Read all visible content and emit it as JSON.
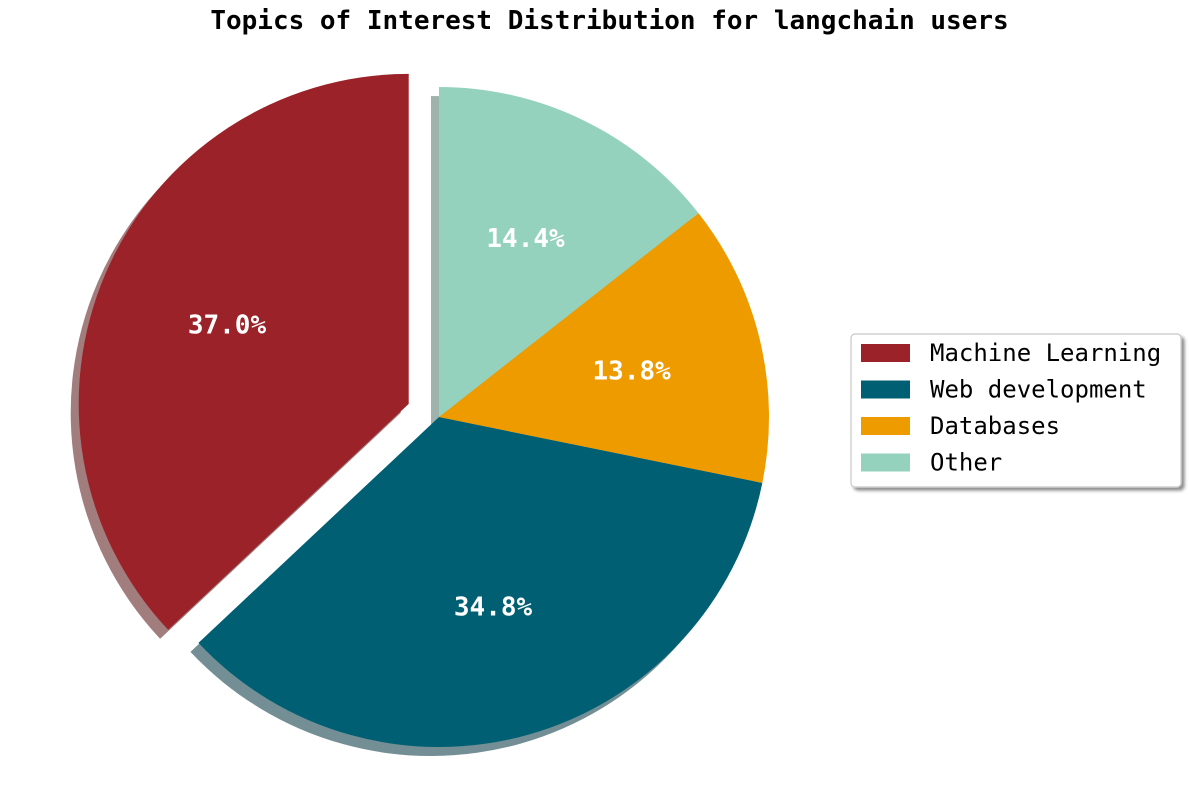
{
  "chart_data": {
    "type": "pie",
    "title": "Topics of Interest Distribution for langchain users",
    "categories": [
      "Machine Learning",
      "Web development",
      "Databases",
      "Other"
    ],
    "values": [
      37.0,
      34.8,
      13.8,
      14.4
    ],
    "value_labels": [
      "37.0%",
      "34.8%",
      "13.8%",
      "14.4%"
    ],
    "colors": [
      "#9b2228",
      "#015f73",
      "#ee9b00",
      "#95d2bd"
    ],
    "exploded": [
      true,
      false,
      false,
      false
    ],
    "start_angle_deg": 90,
    "direction": "counterclockwise",
    "shadow": true,
    "legend_position": "right"
  }
}
